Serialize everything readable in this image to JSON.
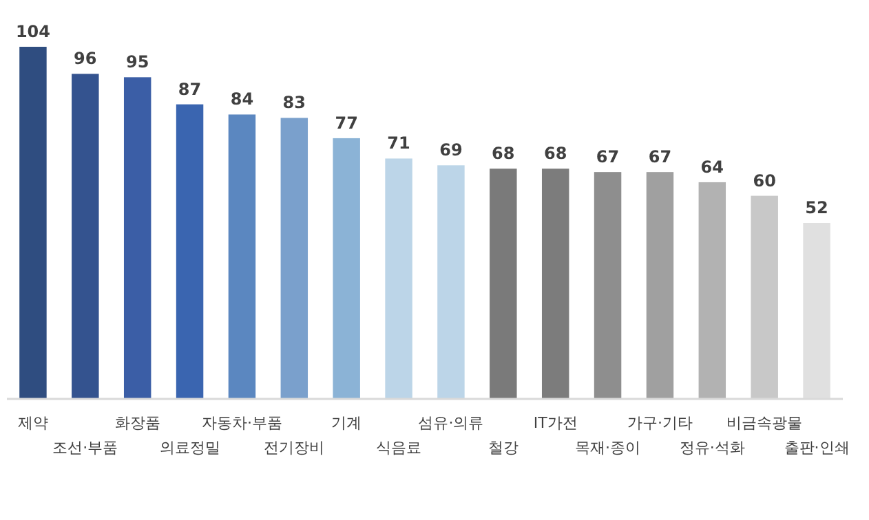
{
  "chart_data": {
    "type": "bar",
    "categories": [
      "제약",
      "조선·부품",
      "화장품",
      "의료정밀",
      "자동차·부품",
      "전기장비",
      "기계",
      "식음료",
      "섬유·의류",
      "철강",
      "IT가전",
      "목재·종이",
      "가구·기타",
      "정유·석화",
      "비금속광물",
      "출판·인쇄"
    ],
    "values": [
      104,
      96,
      95,
      87,
      84,
      83,
      77,
      71,
      69,
      68,
      68,
      67,
      67,
      64,
      60,
      52
    ],
    "colors": [
      "#2f4d80",
      "#34538f",
      "#3b5ea6",
      "#3a65b0",
      "#5b87c0",
      "#7aa0cc",
      "#8bb3d6",
      "#bcd5e8",
      "#bcd5e8",
      "#7a7a7a",
      "#7c7c7c",
      "#8e8e8e",
      "#a0a0a0",
      "#b2b2b2",
      "#c8c8c8",
      "#e0e0e0"
    ],
    "data_labels": true
  }
}
